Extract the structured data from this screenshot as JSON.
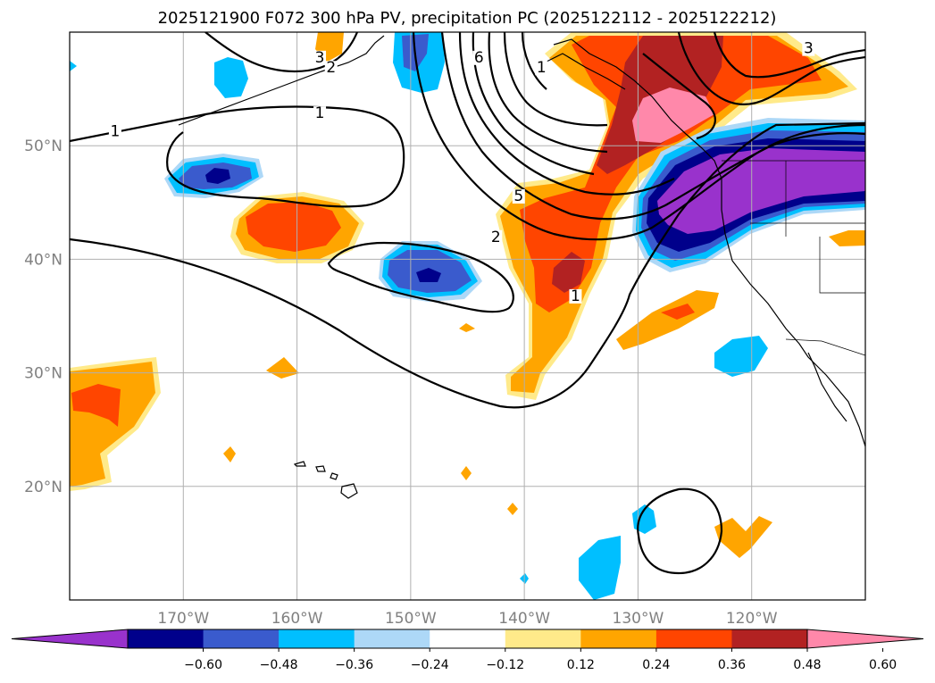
{
  "title": "2025121900 F072 300 hPa PV, precipitation PC (2025122112 - 2025122212)",
  "map": {
    "lon_range": [
      -180,
      -110
    ],
    "lat_range": [
      10,
      60
    ],
    "lon_ticks": [
      {
        "lon": -170,
        "label": "170°W"
      },
      {
        "lon": -160,
        "label": "160°W"
      },
      {
        "lon": -150,
        "label": "150°W"
      },
      {
        "lon": -140,
        "label": "140°W"
      },
      {
        "lon": -130,
        "label": "130°W"
      },
      {
        "lon": -120,
        "label": "120°W"
      }
    ],
    "lat_ticks": [
      {
        "lat": 50,
        "label": "50°N"
      },
      {
        "lat": 40,
        "label": "40°N"
      },
      {
        "lat": 30,
        "label": "30°N"
      },
      {
        "lat": 20,
        "label": "20°N"
      }
    ],
    "gridlines": true
  },
  "contour_labels": [
    {
      "text": "1",
      "lon": -176,
      "lat": 51
    },
    {
      "text": "1",
      "lon": -158,
      "lat": 52.6
    },
    {
      "text": "3",
      "lon": -158,
      "lat": 57.5
    },
    {
      "text": "2",
      "lon": -157,
      "lat": 56.6
    },
    {
      "text": "6",
      "lon": -144,
      "lat": 57.5
    },
    {
      "text": "1",
      "lon": -138.5,
      "lat": 56.6
    },
    {
      "text": "5",
      "lon": -140.5,
      "lat": 45.3
    },
    {
      "text": "2",
      "lon": -142.5,
      "lat": 41.7
    },
    {
      "text": "1",
      "lon": -135.5,
      "lat": 36.5
    },
    {
      "text": "3",
      "lon": -115,
      "lat": 58.3
    }
  ],
  "colorbar": {
    "colors": [
      "#9932cc",
      "#00008b",
      "#3a5bcd",
      "#00bfff",
      "#add8f7",
      "#ffffff",
      "#ffea8a",
      "#ffa500",
      "#ff4500",
      "#b22222",
      "#ff88aa"
    ],
    "tick_labels": [
      "−0.60",
      "−0.48",
      "−0.36",
      "−0.24",
      "−0.12",
      "0.12",
      "0.24",
      "0.36",
      "0.48",
      "0.60"
    ]
  }
}
